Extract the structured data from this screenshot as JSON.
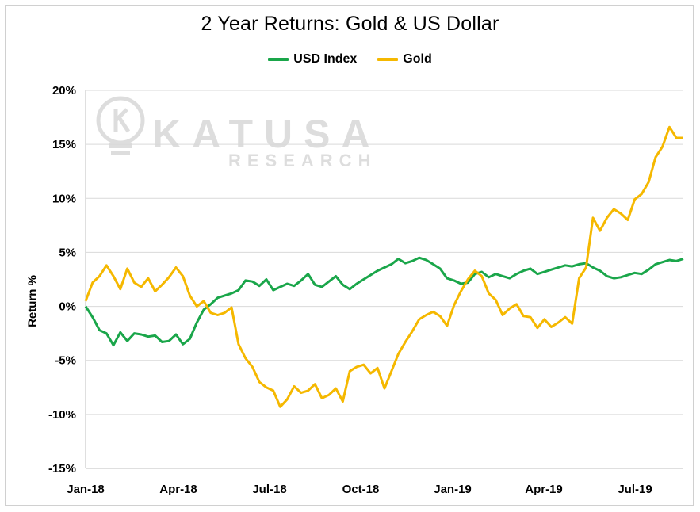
{
  "chart_data": {
    "type": "line",
    "title": "2 Year Returns: Gold & US Dollar",
    "xlabel": "",
    "ylabel": "Return %",
    "ylim": [
      -15,
      20
    ],
    "yticks": [
      "20%",
      "15%",
      "10%",
      "5%",
      "0%",
      "-5%",
      "-10%",
      "-15%"
    ],
    "ytick_values": [
      20,
      15,
      10,
      5,
      0,
      -5,
      -10,
      -15
    ],
    "xticks": [
      "Jan-18",
      "Apr-18",
      "Jul-18",
      "Oct-18",
      "Jan-19",
      "Apr-19",
      "Jul-19"
    ],
    "grid": true,
    "legend_position": "top-center",
    "watermark": {
      "word": "KATUSA",
      "sub": "RESEARCH"
    },
    "series": [
      {
        "name": "USD Index",
        "color": "#1aa64a",
        "x": [
          "2018-01-01",
          "2018-01-08",
          "2018-01-15",
          "2018-01-22",
          "2018-01-29",
          "2018-02-05",
          "2018-02-12",
          "2018-02-19",
          "2018-02-26",
          "2018-03-05",
          "2018-03-12",
          "2018-03-19",
          "2018-03-26",
          "2018-04-02",
          "2018-04-09",
          "2018-04-16",
          "2018-04-23",
          "2018-04-30",
          "2018-05-07",
          "2018-05-14",
          "2018-05-21",
          "2018-05-28",
          "2018-06-04",
          "2018-06-11",
          "2018-06-18",
          "2018-06-25",
          "2018-07-02",
          "2018-07-09",
          "2018-07-16",
          "2018-07-23",
          "2018-07-30",
          "2018-08-06",
          "2018-08-13",
          "2018-08-20",
          "2018-08-27",
          "2018-09-03",
          "2018-09-10",
          "2018-09-17",
          "2018-09-24",
          "2018-10-01",
          "2018-10-08",
          "2018-10-15",
          "2018-10-22",
          "2018-10-29",
          "2018-11-05",
          "2018-11-12",
          "2018-11-19",
          "2018-11-26",
          "2018-12-03",
          "2018-12-10",
          "2018-12-17",
          "2018-12-24",
          "2018-12-31",
          "2019-01-07",
          "2019-01-14",
          "2019-01-21",
          "2019-01-28",
          "2019-02-04",
          "2019-02-11",
          "2019-02-18",
          "2019-02-25",
          "2019-03-04",
          "2019-03-11",
          "2019-03-18",
          "2019-03-25",
          "2019-04-01",
          "2019-04-08",
          "2019-04-15",
          "2019-04-22",
          "2019-04-29",
          "2019-05-06",
          "2019-05-13",
          "2019-05-20",
          "2019-05-27",
          "2019-06-03",
          "2019-06-10",
          "2019-06-17",
          "2019-06-24",
          "2019-07-01",
          "2019-07-08",
          "2019-07-15",
          "2019-07-22",
          "2019-07-29",
          "2019-08-05",
          "2019-08-12",
          "2019-08-19",
          "2019-08-26"
        ],
        "values": [
          0.0,
          -1.0,
          -2.2,
          -2.5,
          -3.6,
          -2.4,
          -3.2,
          -2.5,
          -2.6,
          -2.8,
          -2.7,
          -3.3,
          -3.2,
          -2.6,
          -3.5,
          -3.0,
          -1.5,
          -0.3,
          0.2,
          0.8,
          1.0,
          1.2,
          1.5,
          2.4,
          2.3,
          1.9,
          2.5,
          1.5,
          1.8,
          2.1,
          1.9,
          2.4,
          3.0,
          2.0,
          1.8,
          2.3,
          2.8,
          2.0,
          1.6,
          2.1,
          2.5,
          2.9,
          3.3,
          3.6,
          3.9,
          4.4,
          4.0,
          4.2,
          4.5,
          4.3,
          3.9,
          3.5,
          2.6,
          2.4,
          2.1,
          2.2,
          3.0,
          3.2,
          2.7,
          3.0,
          2.8,
          2.6,
          3.0,
          3.3,
          3.5,
          3.0,
          3.2,
          3.4,
          3.6,
          3.8,
          3.7,
          3.9,
          4.0,
          3.6,
          3.3,
          2.8,
          2.6,
          2.7,
          2.9,
          3.1,
          3.0,
          3.4,
          3.9,
          4.1,
          4.3,
          4.2,
          4.4
        ]
      },
      {
        "name": "Gold",
        "color": "#f5b800",
        "x": [
          "2018-01-01",
          "2018-01-08",
          "2018-01-15",
          "2018-01-22",
          "2018-01-29",
          "2018-02-05",
          "2018-02-12",
          "2018-02-19",
          "2018-02-26",
          "2018-03-05",
          "2018-03-12",
          "2018-03-19",
          "2018-03-26",
          "2018-04-02",
          "2018-04-09",
          "2018-04-16",
          "2018-04-23",
          "2018-04-30",
          "2018-05-07",
          "2018-05-14",
          "2018-05-21",
          "2018-05-28",
          "2018-06-04",
          "2018-06-11",
          "2018-06-18",
          "2018-06-25",
          "2018-07-02",
          "2018-07-09",
          "2018-07-16",
          "2018-07-23",
          "2018-07-30",
          "2018-08-06",
          "2018-08-13",
          "2018-08-20",
          "2018-08-27",
          "2018-09-03",
          "2018-09-10",
          "2018-09-17",
          "2018-09-24",
          "2018-10-01",
          "2018-10-08",
          "2018-10-15",
          "2018-10-22",
          "2018-10-29",
          "2018-11-05",
          "2018-11-12",
          "2018-11-19",
          "2018-11-26",
          "2018-12-03",
          "2018-12-10",
          "2018-12-17",
          "2018-12-24",
          "2018-12-31",
          "2019-01-07",
          "2019-01-14",
          "2019-01-21",
          "2019-01-28",
          "2019-02-04",
          "2019-02-11",
          "2019-02-18",
          "2019-02-25",
          "2019-03-04",
          "2019-03-11",
          "2019-03-18",
          "2019-03-25",
          "2019-04-01",
          "2019-04-08",
          "2019-04-15",
          "2019-04-22",
          "2019-04-29",
          "2019-05-06",
          "2019-05-13",
          "2019-05-20",
          "2019-05-27",
          "2019-06-03",
          "2019-06-10",
          "2019-06-17",
          "2019-06-24",
          "2019-07-01",
          "2019-07-08",
          "2019-07-15",
          "2019-07-22",
          "2019-07-29",
          "2019-08-05",
          "2019-08-12",
          "2019-08-19",
          "2019-08-26"
        ],
        "values": [
          0.5,
          2.2,
          2.8,
          3.8,
          2.8,
          1.6,
          3.5,
          2.2,
          1.8,
          2.6,
          1.4,
          2.0,
          2.7,
          3.6,
          2.8,
          1.0,
          0.0,
          0.5,
          -0.6,
          -0.8,
          -0.6,
          -0.1,
          -3.5,
          -4.8,
          -5.6,
          -7.0,
          -7.5,
          -7.8,
          -9.3,
          -8.6,
          -7.4,
          -8.0,
          -7.8,
          -7.2,
          -8.5,
          -8.2,
          -7.6,
          -8.8,
          -6.0,
          -5.6,
          -5.4,
          -6.2,
          -5.7,
          -7.6,
          -6.0,
          -4.4,
          -3.3,
          -2.3,
          -1.2,
          -0.8,
          -0.5,
          -0.9,
          -1.8,
          0.1,
          1.4,
          2.5,
          3.3,
          2.8,
          1.2,
          0.6,
          -0.8,
          -0.2,
          0.2,
          -0.9,
          -1.0,
          -2.0,
          -1.2,
          -1.9,
          -1.5,
          -1.0,
          -1.6,
          2.6,
          3.6,
          8.2,
          7.0,
          8.2,
          9.0,
          8.6,
          8.0,
          9.9,
          10.4,
          11.5,
          13.8,
          14.8,
          16.6,
          15.6,
          15.6
        ]
      }
    ]
  }
}
